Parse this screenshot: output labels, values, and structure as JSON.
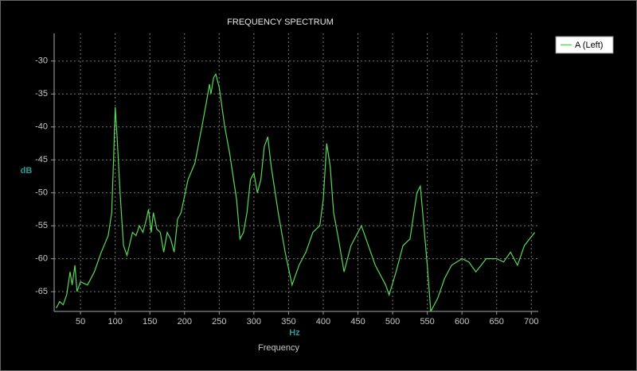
{
  "chart_data": {
    "type": "line",
    "title": "FREQUENCY SPECTRUM",
    "ylabel": "dB",
    "xlabel": "Hz",
    "caption": "Frequency",
    "x": [
      15,
      20,
      25,
      30,
      35,
      38,
      42,
      45,
      50,
      60,
      70,
      80,
      90,
      95,
      98,
      100,
      103,
      107,
      112,
      117,
      125,
      130,
      135,
      140,
      145,
      148,
      152,
      155,
      160,
      165,
      170,
      175,
      180,
      185,
      190,
      195,
      205,
      215,
      225,
      232,
      236,
      238,
      242,
      245,
      250,
      258,
      265,
      275,
      280,
      285,
      290,
      295,
      300,
      305,
      310,
      315,
      320,
      325,
      335,
      345,
      355,
      365,
      375,
      385,
      395,
      400,
      405,
      410,
      415,
      422,
      430,
      440,
      455,
      465,
      475,
      490,
      495,
      505,
      515,
      525,
      535,
      540,
      545,
      550,
      555,
      565,
      575,
      585,
      600,
      610,
      620,
      635,
      650,
      660,
      670,
      680,
      690,
      705
    ],
    "series": [
      {
        "name": "A (Left)",
        "color": "#58d858",
        "values": [
          -67.5,
          -66.5,
          -67,
          -65.5,
          -62,
          -64,
          -61,
          -65,
          -63.5,
          -64,
          -62,
          -59,
          -56.5,
          -53,
          -44,
          -37,
          -42,
          -50,
          -58,
          -59.5,
          -56,
          -56.5,
          -55,
          -56,
          -54,
          -52.5,
          -56,
          -53,
          -55.5,
          -56,
          -59,
          -56,
          -57,
          -59,
          -54,
          -53,
          -48,
          -45.5,
          -40,
          -36,
          -33.5,
          -35,
          -32.5,
          -32,
          -34,
          -40,
          -44,
          -51,
          -57,
          -56,
          -53,
          -48,
          -47,
          -50,
          -48,
          -43,
          -41.5,
          -46,
          -53,
          -59,
          -64,
          -61,
          -59,
          -56,
          -55,
          -51,
          -42.5,
          -46,
          -53,
          -57,
          -62,
          -58,
          -55,
          -58,
          -61,
          -64,
          -65.5,
          -62,
          -58,
          -57,
          -50,
          -49,
          -55,
          -61,
          -68,
          -66,
          -63,
          -61,
          -60,
          -60.5,
          -62,
          -60,
          -60,
          -60.5,
          -59,
          -61,
          -58,
          -56
        ]
      }
    ],
    "xlim": [
      12,
      710
    ],
    "ylim": [
      -68,
      -25.8
    ],
    "xticks": [
      50,
      100,
      150,
      200,
      250,
      300,
      350,
      400,
      450,
      500,
      550,
      600,
      650,
      700
    ],
    "yticks": [
      -65,
      -60,
      -55,
      -50,
      -45,
      -40,
      -35,
      -30
    ],
    "grid": true,
    "background": "#000000"
  }
}
